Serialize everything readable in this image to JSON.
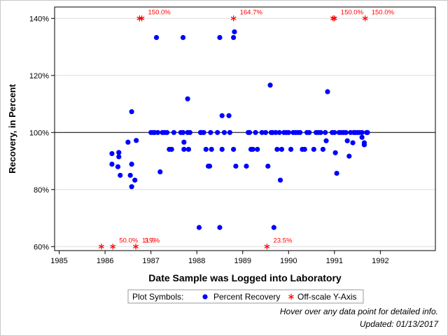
{
  "chart_data": {
    "type": "scatter",
    "xlabel": "Date Sample was Logged into Laboratory",
    "ylabel": "Recovery, in Percent",
    "xlim": [
      1984.9,
      1993.2
    ],
    "ylim": [
      58.6,
      144.0
    ],
    "x_ticks": [
      1985,
      1986,
      1987,
      1988,
      1989,
      1990,
      1991,
      1992
    ],
    "y_ticks": [
      {
        "value": 60,
        "label": "60%"
      },
      {
        "value": 80,
        "label": "80%"
      },
      {
        "value": 100,
        "label": "100%"
      },
      {
        "value": 120,
        "label": "120%"
      },
      {
        "value": 140,
        "label": "140%"
      }
    ],
    "reference_line": 100,
    "off_scale_plot_values": {
      "high": 140,
      "low": 60
    },
    "legend": {
      "title": "Plot Symbols:",
      "entries": [
        "Percent Recovery",
        "Off-scale Y-Axis"
      ],
      "placement": "bottom-center"
    },
    "colors": {
      "recovery": "#0000ff",
      "offscale": "#ff0000",
      "axis": "#000000",
      "grid": "#dcdcdc"
    },
    "series": [
      {
        "name": "Percent Recovery",
        "marker": "circle",
        "points": [
          [
            1986.15,
            92.6
          ],
          [
            1986.15,
            88.9
          ],
          [
            1986.28,
            88.0
          ],
          [
            1986.3,
            93.0
          ],
          [
            1986.3,
            91.5
          ],
          [
            1986.33,
            85.0
          ],
          [
            1986.5,
            96.6
          ],
          [
            1986.55,
            85.0
          ],
          [
            1986.58,
            81.0
          ],
          [
            1986.58,
            88.9
          ],
          [
            1986.58,
            107.3
          ],
          [
            1986.65,
            83.3
          ],
          [
            1986.68,
            97.2
          ],
          [
            1987.0,
            100
          ],
          [
            1987.05,
            100
          ],
          [
            1987.08,
            100
          ],
          [
            1987.12,
            133.3
          ],
          [
            1987.15,
            100
          ],
          [
            1987.2,
            86.2
          ],
          [
            1987.25,
            100
          ],
          [
            1987.3,
            100
          ],
          [
            1987.35,
            100
          ],
          [
            1987.4,
            94.1
          ],
          [
            1987.45,
            94.1
          ],
          [
            1987.5,
            100
          ],
          [
            1987.65,
            100
          ],
          [
            1987.7,
            100
          ],
          [
            1987.7,
            133.3
          ],
          [
            1987.72,
            96.6
          ],
          [
            1987.72,
            94.1
          ],
          [
            1987.8,
            111.8
          ],
          [
            1987.8,
            100
          ],
          [
            1987.82,
            94.1
          ],
          [
            1987.85,
            100
          ],
          [
            1988.05,
            66.7
          ],
          [
            1988.08,
            100
          ],
          [
            1988.1,
            100
          ],
          [
            1988.15,
            100
          ],
          [
            1988.2,
            94.1
          ],
          [
            1988.25,
            88.2
          ],
          [
            1988.28,
            88.2
          ],
          [
            1988.3,
            100
          ],
          [
            1988.32,
            94.1
          ],
          [
            1988.45,
            100
          ],
          [
            1988.5,
            66.7
          ],
          [
            1988.5,
            133.3
          ],
          [
            1988.55,
            94.1
          ],
          [
            1988.55,
            105.9
          ],
          [
            1988.6,
            100
          ],
          [
            1988.7,
            105.9
          ],
          [
            1988.72,
            100
          ],
          [
            1988.8,
            94.1
          ],
          [
            1988.8,
            133.3
          ],
          [
            1988.82,
            135.3
          ],
          [
            1988.85,
            88.2
          ],
          [
            1989.08,
            88.2
          ],
          [
            1989.12,
            100
          ],
          [
            1989.15,
            100
          ],
          [
            1989.18,
            94.1
          ],
          [
            1989.22,
            94.1
          ],
          [
            1989.28,
            100
          ],
          [
            1989.32,
            94.1
          ],
          [
            1989.42,
            100
          ],
          [
            1989.5,
            100
          ],
          [
            1989.55,
            88.2
          ],
          [
            1989.6,
            116.6
          ],
          [
            1989.62,
            100
          ],
          [
            1989.65,
            100
          ],
          [
            1989.68,
            66.7
          ],
          [
            1989.72,
            100
          ],
          [
            1989.75,
            94.1
          ],
          [
            1989.8,
            100
          ],
          [
            1989.82,
            83.3
          ],
          [
            1989.85,
            94.1
          ],
          [
            1989.9,
            100
          ],
          [
            1989.95,
            100
          ],
          [
            1990.0,
            100
          ],
          [
            1990.05,
            94.1
          ],
          [
            1990.1,
            100
          ],
          [
            1990.15,
            100
          ],
          [
            1990.2,
            100
          ],
          [
            1990.25,
            100
          ],
          [
            1990.3,
            94.1
          ],
          [
            1990.35,
            94.1
          ],
          [
            1990.4,
            100
          ],
          [
            1990.45,
            100
          ],
          [
            1990.55,
            94.1
          ],
          [
            1990.6,
            100
          ],
          [
            1990.65,
            100
          ],
          [
            1990.7,
            100
          ],
          [
            1990.75,
            94.1
          ],
          [
            1990.8,
            100
          ],
          [
            1990.82,
            97.1
          ],
          [
            1990.85,
            114.3
          ],
          [
            1990.95,
            100
          ],
          [
            1991.0,
            100
          ],
          [
            1991.02,
            92.9
          ],
          [
            1991.05,
            85.7
          ],
          [
            1991.1,
            100
          ],
          [
            1991.15,
            100
          ],
          [
            1991.2,
            100
          ],
          [
            1991.25,
            100
          ],
          [
            1991.28,
            97.1
          ],
          [
            1991.32,
            91.7
          ],
          [
            1991.35,
            100
          ],
          [
            1991.4,
            96.4
          ],
          [
            1991.42,
            100
          ],
          [
            1991.45,
            100
          ],
          [
            1991.5,
            100
          ],
          [
            1991.55,
            100
          ],
          [
            1991.6,
            100
          ],
          [
            1991.6,
            98.3
          ],
          [
            1991.65,
            96.4
          ],
          [
            1991.65,
            95.7
          ],
          [
            1991.7,
            100
          ],
          [
            1991.72,
            100
          ]
        ]
      },
      {
        "name": "Off-scale Y-Axis",
        "marker": "asterisk",
        "points": [
          {
            "x": 1985.92,
            "y": 60
          },
          {
            "x": 1986.17,
            "y": 60,
            "label": "50.0%"
          },
          {
            "x": 1986.67,
            "y": 60,
            "label": "11%"
          },
          {
            "x": 1986.75,
            "y": 140
          },
          {
            "x": 1986.8,
            "y": 140,
            "label": "150.0%"
          },
          {
            "x": 1988.8,
            "y": 140,
            "label": "164.7%"
          },
          {
            "x": 1989.53,
            "y": 60,
            "label": "23.5%"
          },
          {
            "x": 1990.97,
            "y": 140
          },
          {
            "x": 1991.0,
            "y": 140,
            "label": "150.0%"
          },
          {
            "x": 1991.67,
            "y": 140,
            "label": "150.0%"
          }
        ],
        "extra_labels": [
          {
            "x": 1986.86,
            "y": 60,
            "label": "3.7%"
          }
        ]
      }
    ]
  },
  "footer": {
    "hover_note": "Hover over any data point for detailed info.",
    "updated": "Updated: 01/13/2017"
  }
}
